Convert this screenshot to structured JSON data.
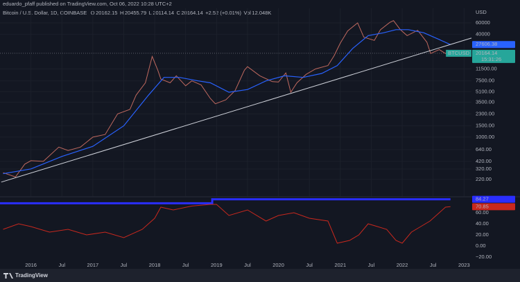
{
  "header": {
    "publisher": "eduardo_pfaff published on TradingView.com, Oct 06, 2022 10:28 UTC+2"
  },
  "legend": {
    "symbol_line": "Bitcoin / U.S. Dollar, 1D, COINBASE",
    "ohlc": [
      {
        "label": "O",
        "value": 20162.15
      },
      {
        "label": "H",
        "value": 20455.79
      },
      {
        "label": "L",
        "value": 20114.14
      },
      {
        "label": "C",
        "value": 20164.14
      }
    ],
    "change": "+2.52 (+0.01%)",
    "volume": {
      "label": "Vol",
      "value": "12.048K"
    }
  },
  "chart_data": [
    {
      "type": "line",
      "log": true,
      "grid": true,
      "grid_color": "#1c202b",
      "y_unit": "USD",
      "xlim": [
        2015.5,
        2023.12
      ],
      "ylim": [
        121,
        101000
      ],
      "xticks": [
        2016,
        {
          "value": 2016.5,
          "label": "Jul"
        },
        2017,
        {
          "value": 2017.5,
          "label": "Jul"
        },
        2018,
        {
          "value": 2018.5,
          "label": "Jul"
        },
        2019,
        {
          "value": 2019.5,
          "label": "Jul"
        },
        2020,
        {
          "value": 2020.5,
          "label": "Jul"
        },
        2021,
        {
          "value": 2021.5,
          "label": "Jul"
        },
        2022,
        {
          "value": 2022.5,
          "label": "Jul"
        },
        2023
      ],
      "yticks": [
        60000,
        40000,
        {
          "value": 11500,
          "label": "11500.00"
        },
        {
          "value": 7500,
          "label": "7500.00"
        },
        {
          "value": 5100,
          "label": "5100.00"
        },
        {
          "value": 3500,
          "label": "3500.00"
        },
        {
          "value": 2300,
          "label": "2300.00"
        },
        {
          "value": 1500,
          "label": "1500.00"
        },
        {
          "value": 1000,
          "label": "1000.00"
        },
        {
          "value": 640,
          "label": "640.00"
        },
        {
          "value": 420,
          "label": "420.00"
        },
        {
          "value": 320,
          "label": "320.00"
        },
        {
          "value": 220,
          "label": "220.00"
        }
      ],
      "series": [
        {
          "color": "#c0695f",
          "width": 1,
          "x": [
            2015.55,
            2015.75,
            2015.9,
            2016.0,
            2016.2,
            2016.45,
            2016.6,
            2016.8,
            2017.0,
            2017.2,
            2017.4,
            2017.6,
            2017.7,
            2017.85,
            2017.96,
            2018.05,
            2018.1,
            2018.25,
            2018.35,
            2018.5,
            2018.6,
            2018.75,
            2018.9,
            2018.98,
            2019.15,
            2019.3,
            2019.45,
            2019.5,
            2019.7,
            2019.9,
            2020.0,
            2020.12,
            2020.2,
            2020.3,
            2020.45,
            2020.6,
            2020.8,
            2020.9,
            2021.0,
            2021.12,
            2021.28,
            2021.38,
            2021.55,
            2021.65,
            2021.8,
            2021.86,
            2021.97,
            2022.08,
            2022.25,
            2022.4,
            2022.46,
            2022.6,
            2022.7,
            2022.76
          ],
          "values": [
            280,
            240,
            380,
            430,
            420,
            700,
            620,
            700,
            1000,
            1100,
            2300,
            2700,
            4500,
            7000,
            18000,
            11000,
            8000,
            7000,
            9000,
            6300,
            7500,
            6500,
            4000,
            3300,
            3800,
            5300,
            11000,
            12500,
            9000,
            7300,
            7200,
            10000,
            5000,
            7000,
            9500,
            11500,
            13000,
            18500,
            29000,
            45000,
            60000,
            36000,
            32000,
            47000,
            61000,
            65000,
            47000,
            38000,
            46000,
            30000,
            20000,
            23000,
            20000,
            20164.14
          ]
        },
        {
          "color": "#2962ff",
          "width": 1.2,
          "badge": true,
          "x": [
            2015.55,
            2016.0,
            2016.5,
            2017.0,
            2017.5,
            2017.9,
            2018.15,
            2018.4,
            2018.7,
            2018.9,
            2019.2,
            2019.5,
            2019.8,
            2020.1,
            2020.4,
            2020.7,
            2020.95,
            2021.2,
            2021.45,
            2021.7,
            2021.9,
            2022.1,
            2022.35,
            2022.6,
            2022.78
          ],
          "values": [
            270,
            320,
            500,
            720,
            1500,
            4500,
            8500,
            8500,
            7500,
            7000,
            5000,
            5500,
            7500,
            9000,
            8500,
            9800,
            13000,
            24000,
            38000,
            42000,
            47000,
            47000,
            42000,
            33000,
            27606.38
          ]
        },
        {
          "color": "#d1d4dc",
          "width": 1,
          "x": [
            2015.52,
            2023.12
          ],
          "values": [
            200,
            34800
          ]
        }
      ],
      "last_price": 20164.14,
      "last_color": "#26a69a",
      "symbol": "BTCUSD",
      "countdown": "15:31:26"
    },
    {
      "type": "line",
      "ylim": [
        -28.75,
        87.5
      ],
      "yticks": [
        {
          "value": 60,
          "label": "60.00"
        },
        {
          "value": 40,
          "label": "40.00"
        },
        {
          "value": 20,
          "label": "20.00"
        },
        {
          "value": 0,
          "label": "0.00"
        },
        {
          "value": -20,
          "label": "−20.00"
        }
      ],
      "series": [
        {
          "color": "#2a2eff",
          "width": 3,
          "badge": true,
          "x": [
            2015.5,
            2018.93,
            2018.93,
            2022.78
          ],
          "values": [
            77,
            77,
            84.27,
            84.27
          ]
        },
        {
          "color": "#c8281e",
          "width": 1,
          "badge": true,
          "x": [
            2015.55,
            2015.8,
            2016.0,
            2016.3,
            2016.6,
            2016.9,
            2017.2,
            2017.5,
            2017.8,
            2018.0,
            2018.1,
            2018.3,
            2018.6,
            2018.9,
            2019.0,
            2019.2,
            2019.5,
            2019.8,
            2020.0,
            2020.25,
            2020.5,
            2020.8,
            2020.95,
            2021.15,
            2021.3,
            2021.45,
            2021.6,
            2021.75,
            2021.9,
            2022.0,
            2022.15,
            2022.3,
            2022.45,
            2022.6,
            2022.7,
            2022.78
          ],
          "values": [
            30,
            40,
            35,
            25,
            30,
            20,
            25,
            15,
            30,
            50,
            70,
            65,
            72,
            75,
            75,
            55,
            65,
            45,
            55,
            60,
            50,
            45,
            5,
            10,
            20,
            40,
            35,
            30,
            10,
            5,
            25,
            35,
            45,
            60,
            70,
            70.85
          ]
        }
      ]
    }
  ],
  "footer": {
    "brand": "TradingView"
  }
}
